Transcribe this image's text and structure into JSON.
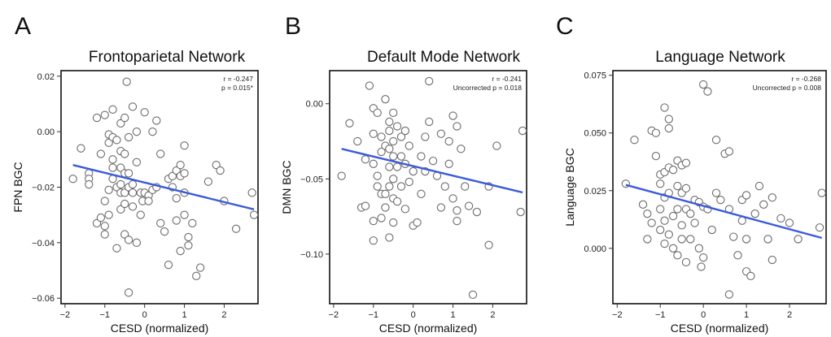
{
  "chart_data": [
    {
      "type": "scatter",
      "panel_letter": "A",
      "title": "Frontoparietal Network",
      "xlabel": "CESD (normalized)",
      "ylabel": "FPN BGC",
      "xlim": [
        -2.1,
        2.85
      ],
      "ylim": [
        -0.062,
        0.022
      ],
      "x_ticks": [
        -2,
        -1,
        0,
        1,
        2
      ],
      "x_tick_labels": [
        "−2",
        "−1",
        "0",
        "1",
        "2"
      ],
      "y_ticks": [
        -0.06,
        -0.04,
        -0.02,
        0.0,
        0.02
      ],
      "y_tick_labels": [
        "−0.06",
        "−0.04",
        "−0.02",
        "0.00",
        "0.02"
      ],
      "stats": [
        "r = -0.247",
        "p = 0.015*"
      ],
      "fit_line": {
        "x": [
          -1.8,
          2.75
        ],
        "y": [
          -0.012,
          -0.028
        ]
      },
      "line_color": "#3b5bdb",
      "points": [
        [
          -1.8,
          -0.017
        ],
        [
          -1.6,
          -0.006
        ],
        [
          -1.4,
          -0.015
        ],
        [
          -1.4,
          -0.017
        ],
        [
          -1.4,
          -0.019
        ],
        [
          -1.2,
          0.005
        ],
        [
          -1.2,
          -0.033
        ],
        [
          -1.1,
          -0.008
        ],
        [
          -1.1,
          -0.031
        ],
        [
          -1.0,
          -0.025
        ],
        [
          -1.0,
          0.006
        ],
        [
          -1.0,
          -0.034
        ],
        [
          -1.0,
          -0.037
        ],
        [
          -0.9,
          -0.001
        ],
        [
          -0.9,
          -0.004
        ],
        [
          -0.9,
          -0.021
        ],
        [
          -0.9,
          -0.03
        ],
        [
          -0.8,
          0.008
        ],
        [
          -0.8,
          -0.002
        ],
        [
          -0.8,
          -0.01
        ],
        [
          -0.8,
          -0.013
        ],
        [
          -0.8,
          -0.017
        ],
        [
          -0.7,
          -0.003
        ],
        [
          -0.7,
          -0.042
        ],
        [
          -0.7,
          -0.02
        ],
        [
          -0.6,
          0.003
        ],
        [
          -0.6,
          -0.007
        ],
        [
          -0.6,
          -0.013
        ],
        [
          -0.6,
          -0.019
        ],
        [
          -0.6,
          -0.022
        ],
        [
          -0.6,
          -0.028
        ],
        [
          -0.5,
          0.005
        ],
        [
          -0.5,
          -0.008
        ],
        [
          -0.5,
          -0.015
        ],
        [
          -0.5,
          -0.022
        ],
        [
          -0.5,
          -0.026
        ],
        [
          -0.5,
          -0.037
        ],
        [
          -0.45,
          0.018
        ],
        [
          -0.4,
          -0.002
        ],
        [
          -0.4,
          -0.015
        ],
        [
          -0.4,
          -0.02
        ],
        [
          -0.4,
          -0.039
        ],
        [
          -0.4,
          -0.058
        ],
        [
          -0.3,
          0.009
        ],
        [
          -0.3,
          -0.019
        ],
        [
          -0.3,
          -0.022
        ],
        [
          -0.3,
          -0.027
        ],
        [
          -0.2,
          0.0
        ],
        [
          -0.2,
          -0.011
        ],
        [
          -0.2,
          -0.04
        ],
        [
          -0.1,
          -0.022
        ],
        [
          -0.1,
          -0.03
        ],
        [
          -0.05,
          -0.025
        ],
        [
          0.0,
          0.007
        ],
        [
          0.0,
          -0.022
        ],
        [
          0.1,
          -0.023
        ],
        [
          0.1,
          -0.025
        ],
        [
          0.2,
          0.0
        ],
        [
          0.2,
          -0.021
        ],
        [
          0.3,
          0.004
        ],
        [
          0.3,
          -0.02
        ],
        [
          0.4,
          -0.008
        ],
        [
          0.4,
          -0.033
        ],
        [
          0.5,
          -0.036
        ],
        [
          0.6,
          -0.017
        ],
        [
          0.6,
          -0.048
        ],
        [
          0.7,
          -0.016
        ],
        [
          0.7,
          -0.02
        ],
        [
          0.8,
          -0.014
        ],
        [
          0.8,
          -0.024
        ],
        [
          0.8,
          -0.032
        ],
        [
          0.9,
          -0.012
        ],
        [
          0.9,
          -0.016
        ],
        [
          0.9,
          -0.043
        ],
        [
          1.0,
          -0.005
        ],
        [
          1.0,
          -0.015
        ],
        [
          1.0,
          -0.022
        ],
        [
          1.0,
          -0.03
        ],
        [
          1.1,
          -0.038
        ],
        [
          1.1,
          -0.041
        ],
        [
          1.2,
          -0.033
        ],
        [
          1.3,
          -0.052
        ],
        [
          1.4,
          -0.049
        ],
        [
          1.6,
          -0.018
        ],
        [
          1.8,
          -0.012
        ],
        [
          1.9,
          -0.014
        ],
        [
          2.0,
          -0.025
        ],
        [
          2.3,
          -0.035
        ],
        [
          2.7,
          -0.022
        ],
        [
          2.75,
          -0.03
        ]
      ]
    },
    {
      "type": "scatter",
      "panel_letter": "B",
      "title": "Default Mode Network",
      "xlabel": "CESD (normalized)",
      "ylabel": "DMN BGC",
      "xlim": [
        -2.1,
        2.85
      ],
      "ylim": [
        -0.133,
        0.022
      ],
      "x_ticks": [
        -2,
        -1,
        0,
        1,
        2
      ],
      "x_tick_labels": [
        "−2",
        "−1",
        "0",
        "1",
        "2"
      ],
      "y_ticks": [
        -0.1,
        -0.05,
        0.0
      ],
      "y_tick_labels": [
        "−0.10",
        "−0.05",
        "0.00"
      ],
      "stats": [
        "r = -0.241",
        "Uncorrected p = 0.018"
      ],
      "fit_line": {
        "x": [
          -1.8,
          2.75
        ],
        "y": [
          -0.03,
          -0.059
        ]
      },
      "line_color": "#3b5bdb",
      "points": [
        [
          -1.8,
          -0.048
        ],
        [
          -1.6,
          -0.013
        ],
        [
          -1.4,
          -0.025
        ],
        [
          -1.3,
          -0.069
        ],
        [
          -1.2,
          -0.068
        ],
        [
          -1.2,
          -0.037
        ],
        [
          -1.1,
          0.012
        ],
        [
          -1.0,
          -0.003
        ],
        [
          -1.0,
          -0.02
        ],
        [
          -1.0,
          -0.04
        ],
        [
          -1.0,
          -0.091
        ],
        [
          -1.0,
          -0.078
        ],
        [
          -0.9,
          -0.006
        ],
        [
          -0.9,
          -0.048
        ],
        [
          -0.9,
          -0.055
        ],
        [
          -0.8,
          -0.022
        ],
        [
          -0.8,
          -0.032
        ],
        [
          -0.8,
          -0.06
        ],
        [
          -0.8,
          -0.076
        ],
        [
          -0.7,
          0.003
        ],
        [
          -0.7,
          -0.028
        ],
        [
          -0.7,
          -0.06
        ],
        [
          -0.7,
          -0.069
        ],
        [
          -0.6,
          -0.012
        ],
        [
          -0.6,
          -0.018
        ],
        [
          -0.6,
          -0.03
        ],
        [
          -0.6,
          -0.042
        ],
        [
          -0.6,
          -0.055
        ],
        [
          -0.6,
          -0.089
        ],
        [
          -0.5,
          -0.006
        ],
        [
          -0.5,
          -0.025
        ],
        [
          -0.5,
          -0.035
        ],
        [
          -0.5,
          -0.05
        ],
        [
          -0.5,
          -0.063
        ],
        [
          -0.5,
          -0.079
        ],
        [
          -0.4,
          -0.015
        ],
        [
          -0.4,
          -0.042
        ],
        [
          -0.4,
          -0.065
        ],
        [
          -0.3,
          -0.022
        ],
        [
          -0.3,
          -0.035
        ],
        [
          -0.3,
          -0.055
        ],
        [
          -0.2,
          -0.018
        ],
        [
          -0.2,
          -0.04
        ],
        [
          -0.2,
          -0.07
        ],
        [
          -0.1,
          -0.028
        ],
        [
          -0.1,
          -0.052
        ],
        [
          0.0,
          -0.045
        ],
        [
          0.0,
          -0.081
        ],
        [
          0.1,
          -0.079
        ],
        [
          0.2,
          -0.035
        ],
        [
          0.2,
          -0.06
        ],
        [
          0.3,
          -0.022
        ],
        [
          0.3,
          -0.045
        ],
        [
          0.4,
          0.015
        ],
        [
          0.4,
          -0.012
        ],
        [
          0.5,
          -0.038
        ],
        [
          0.6,
          -0.048
        ],
        [
          0.7,
          -0.02
        ],
        [
          0.7,
          -0.069
        ],
        [
          0.8,
          -0.055
        ],
        [
          0.9,
          -0.025
        ],
        [
          0.9,
          -0.04
        ],
        [
          1.0,
          -0.008
        ],
        [
          1.0,
          -0.063
        ],
        [
          1.1,
          -0.015
        ],
        [
          1.1,
          -0.071
        ],
        [
          1.1,
          -0.078
        ],
        [
          1.2,
          -0.03
        ],
        [
          1.3,
          -0.055
        ],
        [
          1.4,
          -0.068
        ],
        [
          1.5,
          -0.127
        ],
        [
          1.6,
          -0.072
        ],
        [
          1.9,
          -0.094
        ],
        [
          1.9,
          -0.055
        ],
        [
          2.1,
          -0.028
        ],
        [
          2.7,
          -0.072
        ],
        [
          2.75,
          -0.018
        ]
      ]
    },
    {
      "type": "scatter",
      "panel_letter": "C",
      "title": "Language Network",
      "xlabel": "CESD (normalized)",
      "ylabel": "Language BGC",
      "xlim": [
        -2.1,
        2.85
      ],
      "ylim": [
        -0.024,
        0.077
      ],
      "x_ticks": [
        -2,
        -1,
        0,
        1,
        2
      ],
      "x_tick_labels": [
        "−2",
        "−1",
        "0",
        "1",
        "2"
      ],
      "y_ticks": [
        0.0,
        0.025,
        0.05,
        0.075
      ],
      "y_tick_labels": [
        "0.000",
        "0.025",
        "0.050",
        "0.075"
      ],
      "stats": [
        "r = -0.268",
        "Uncorrected p = 0.008"
      ],
      "fit_line": {
        "x": [
          -1.8,
          2.75
        ],
        "y": [
          0.0275,
          0.0045
        ]
      },
      "line_color": "#3b5bdb",
      "points": [
        [
          -1.8,
          0.028
        ],
        [
          -1.6,
          0.047
        ],
        [
          -1.4,
          0.019
        ],
        [
          -1.3,
          0.004
        ],
        [
          -1.3,
          0.015
        ],
        [
          -1.2,
          0.011
        ],
        [
          -1.2,
          0.051
        ],
        [
          -1.1,
          0.04
        ],
        [
          -1.1,
          0.05
        ],
        [
          -1.0,
          0.017
        ],
        [
          -1.0,
          0.028
        ],
        [
          -1.0,
          0.032
        ],
        [
          -1.0,
          0.008
        ],
        [
          -0.9,
          0.061
        ],
        [
          -0.9,
          0.033
        ],
        [
          -0.9,
          0.022
        ],
        [
          -0.9,
          0.012
        ],
        [
          -0.9,
          0.002
        ],
        [
          -0.8,
          0.056
        ],
        [
          -0.8,
          0.052
        ],
        [
          -0.8,
          0.035
        ],
        [
          -0.8,
          0.024
        ],
        [
          -0.8,
          0.006
        ],
        [
          -0.7,
          0.034
        ],
        [
          -0.7,
          0.014
        ],
        [
          -0.7,
          0.0
        ],
        [
          -0.6,
          0.038
        ],
        [
          -0.6,
          0.027
        ],
        [
          -0.6,
          0.017
        ],
        [
          -0.6,
          -0.003
        ],
        [
          -0.5,
          0.036
        ],
        [
          -0.5,
          0.024
        ],
        [
          -0.5,
          0.01
        ],
        [
          -0.5,
          0.004
        ],
        [
          -0.4,
          0.037
        ],
        [
          -0.4,
          0.026
        ],
        [
          -0.4,
          0.017
        ],
        [
          -0.4,
          -0.006
        ],
        [
          -0.3,
          0.015
        ],
        [
          -0.3,
          0.004
        ],
        [
          -0.2,
          0.021
        ],
        [
          -0.2,
          0.011
        ],
        [
          -0.1,
          0.02
        ],
        [
          -0.1,
          0.0
        ],
        [
          -0.05,
          -0.008
        ],
        [
          0.0,
          0.071
        ],
        [
          0.0,
          0.018
        ],
        [
          0.0,
          -0.004
        ],
        [
          0.1,
          0.068
        ],
        [
          0.1,
          0.017
        ],
        [
          0.2,
          0.008
        ],
        [
          0.3,
          0.047
        ],
        [
          0.3,
          0.024
        ],
        [
          0.4,
          0.021
        ],
        [
          0.5,
          0.041
        ],
        [
          0.6,
          0.042
        ],
        [
          0.6,
          0.017
        ],
        [
          0.6,
          -0.02
        ],
        [
          0.7,
          0.005
        ],
        [
          0.8,
          -0.003
        ],
        [
          0.9,
          0.021
        ],
        [
          0.9,
          0.012
        ],
        [
          1.0,
          0.023
        ],
        [
          1.0,
          0.004
        ],
        [
          1.0,
          -0.01
        ],
        [
          1.1,
          -0.012
        ],
        [
          1.2,
          0.015
        ],
        [
          1.3,
          0.027
        ],
        [
          1.4,
          0.019
        ],
        [
          1.5,
          0.004
        ],
        [
          1.6,
          0.022
        ],
        [
          1.6,
          -0.005
        ],
        [
          1.8,
          0.013
        ],
        [
          2.0,
          0.011
        ],
        [
          2.2,
          0.004
        ],
        [
          2.7,
          0.009
        ],
        [
          2.75,
          0.024
        ]
      ]
    }
  ]
}
